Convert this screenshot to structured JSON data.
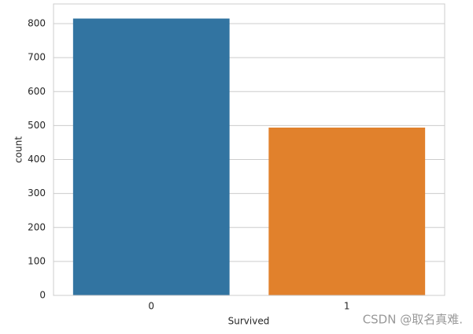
{
  "chart_data": {
    "type": "bar",
    "x_label": "Survived",
    "y_label": "count",
    "categories": [
      "0",
      "1"
    ],
    "values": [
      815,
      494
    ],
    "colors": [
      "#3274a1",
      "#e1812c"
    ],
    "ylim": [
      0,
      858
    ],
    "yticks": [
      0,
      100,
      200,
      300,
      400,
      500,
      600,
      700,
      800
    ],
    "grid": true
  },
  "watermark": "CSDN @取名真难."
}
